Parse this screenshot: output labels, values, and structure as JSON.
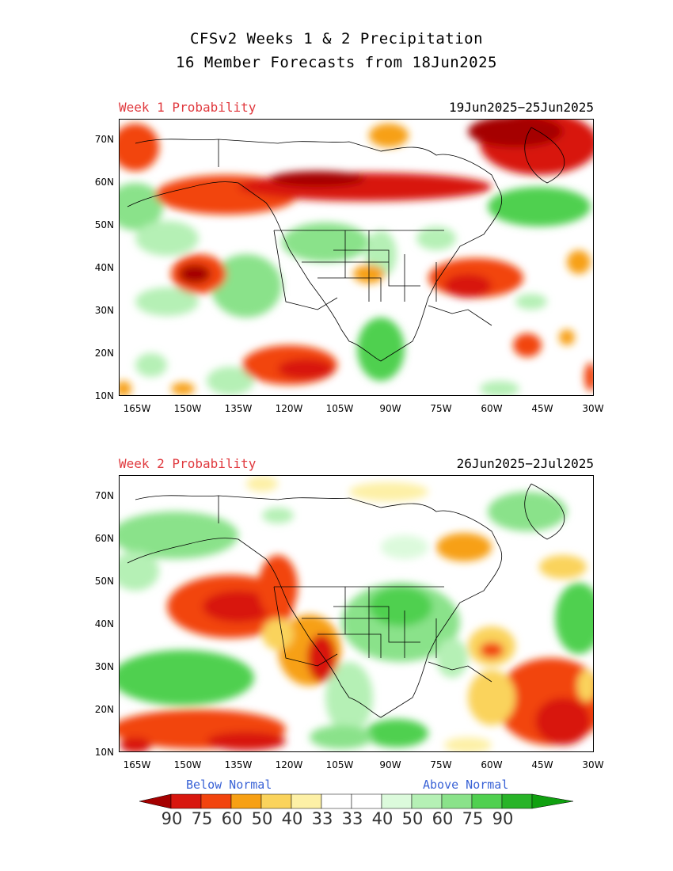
{
  "title": {
    "line1": "CFSv2 Weeks 1 & 2 Precipitation",
    "line2": "16 Member Forecasts from 18Jun2025"
  },
  "panels": [
    {
      "label": "Week 1 Probability",
      "dates": "19Jun2025−25Jun2025"
    },
    {
      "label": "Week 2 Probability",
      "dates": "26Jun2025−2Jul2025"
    }
  ],
  "axes": {
    "lat_ticks": [
      "70N",
      "60N",
      "50N",
      "40N",
      "30N",
      "20N",
      "10N"
    ],
    "lon_ticks": [
      "165W",
      "150W",
      "135W",
      "120W",
      "105W",
      "90W",
      "75W",
      "60W",
      "45W",
      "30W"
    ]
  },
  "legend": {
    "below_label": "Below Normal",
    "above_label": "Above Normal",
    "values": [
      "90",
      "75",
      "60",
      "50",
      "40",
      "33",
      "33",
      "40",
      "50",
      "60",
      "75",
      "90"
    ],
    "colors": [
      "#a50000",
      "#d8170f",
      "#f2440e",
      "#f7a014",
      "#fad35c",
      "#fdf0a6",
      "#ffffff",
      "#dcfadc",
      "#b5f0b5",
      "#8ae28a",
      "#50d050",
      "#28b428",
      "#10a010"
    ]
  },
  "colors": {
    "dry_strong": "#a50000",
    "dry": "#d8170f",
    "dry_mod": "#f2440e",
    "dry_weak": "#f7a014",
    "dry_light": "#fad35c",
    "dry_faint": "#fdf0a6",
    "wet_faint": "#dcfadc",
    "wet_light": "#b5f0b5",
    "wet_weak": "#8ae28a",
    "wet_mod": "#50d050",
    "wet": "#28b428",
    "title_red": "#e0393e",
    "legend_blue": "#3a63d6"
  }
}
